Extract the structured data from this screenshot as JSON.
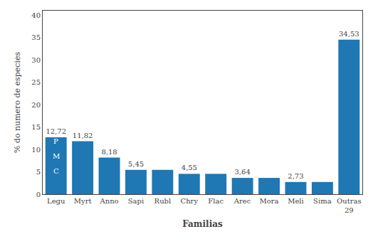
{
  "chart_data": {
    "type": "bar",
    "categories": [
      "Legu",
      "Myrt",
      "Anno",
      "Sapi",
      "Rubl",
      "Chry",
      "Flac",
      "Arec",
      "Mora",
      "Meli",
      "Sima",
      "Outras\n29"
    ],
    "values": [
      12.72,
      11.82,
      8.18,
      5.45,
      5.45,
      4.55,
      4.55,
      3.64,
      3.64,
      2.73,
      2.73,
      34.53
    ],
    "value_labels": [
      "12,72",
      "11,82",
      "8,18",
      "5,45",
      null,
      "4,55",
      null,
      "3,64",
      null,
      "2,73",
      null,
      "34,53"
    ],
    "data_labels": true,
    "annotations": [
      {
        "text": "P",
        "x": "Legu",
        "y": 11.8
      },
      {
        "text": "M",
        "x": "Legu",
        "y": 8.5
      },
      {
        "text": "C",
        "x": "Legu",
        "y": 5.2
      }
    ],
    "xlabel": "Familias",
    "ylabel": "% do numero de especies",
    "ylim": [
      0,
      41
    ],
    "yticks": [
      0,
      5,
      10,
      15,
      20,
      25,
      30,
      35,
      40
    ],
    "grid": false
  }
}
